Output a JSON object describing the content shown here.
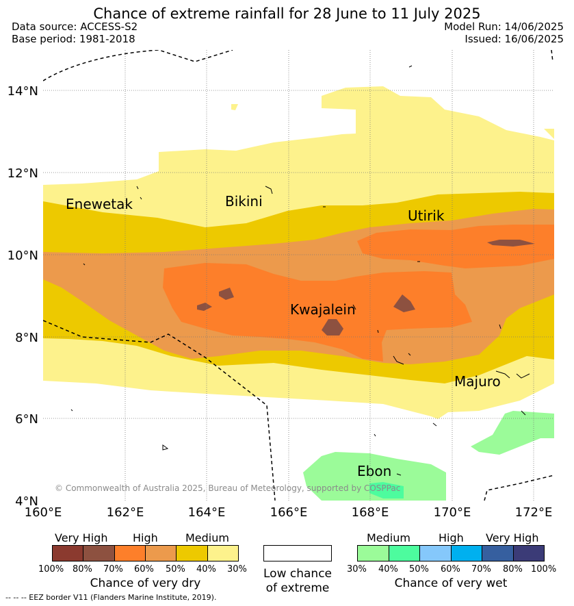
{
  "title": "Chance of extreme rainfall for 28 June to 11 July 2025",
  "meta": {
    "data_source": "Data source: ACCESS-S2",
    "base_period": "Base period: 1981-2018",
    "model_run": "Model Run: 14/06/2025",
    "issued": "Issued: 16/06/2025"
  },
  "map": {
    "lon_range": [
      160,
      172.5
    ],
    "lat_range": [
      4,
      15
    ],
    "lon_ticks": [
      "160°E",
      "162°E",
      "164°E",
      "166°E",
      "168°E",
      "170°E",
      "172°E"
    ],
    "lat_ticks": [
      "4°N",
      "6°N",
      "8°N",
      "10°N",
      "12°N",
      "14°N"
    ],
    "places": [
      {
        "name": "Enewetak",
        "lon": 162.3,
        "lat": 11.4
      },
      {
        "name": "Bikini",
        "lon": 165.5,
        "lat": 11.6
      },
      {
        "name": "Utirik",
        "lon": 169.6,
        "lat": 11.3
      },
      {
        "name": "Kwajalein",
        "lon": 167.5,
        "lat": 8.9
      },
      {
        "name": "Majuro",
        "lon": 171.1,
        "lat": 7.1
      },
      {
        "name": "Ebon",
        "lon": 168.3,
        "lat": 4.9
      }
    ],
    "copyright": "© Commonwealth of Australia 2025, Bureau of Meteorology, supported by COSPPac"
  },
  "legend": {
    "dry": {
      "levels": [
        "Very High",
        "High",
        "Medium"
      ],
      "colors": [
        "#8b3a2f",
        "#8d5140",
        "#fd7f2a",
        "#ec9a4c",
        "#edc900",
        "#fdf28c"
      ],
      "ticks": [
        "100%",
        "80%",
        "70%",
        "60%",
        "50%",
        "40%",
        "30%"
      ],
      "caption": "Chance of very dry"
    },
    "low": {
      "caption_1": "Low chance",
      "caption_2": "of extreme"
    },
    "wet": {
      "levels": [
        "Medium",
        "High",
        "Very High"
      ],
      "colors": [
        "#9bfb99",
        "#4dfc9e",
        "#85c8fb",
        "#00b0ef",
        "#365f9f",
        "#3b3b77"
      ],
      "ticks": [
        "30%",
        "40%",
        "50%",
        "60%",
        "70%",
        "80%",
        "100%"
      ],
      "caption": "Chance of very wet"
    }
  },
  "eez_note": "--  --  -- EEZ border V11 (Flanders Marine Institute, 2019)."
}
